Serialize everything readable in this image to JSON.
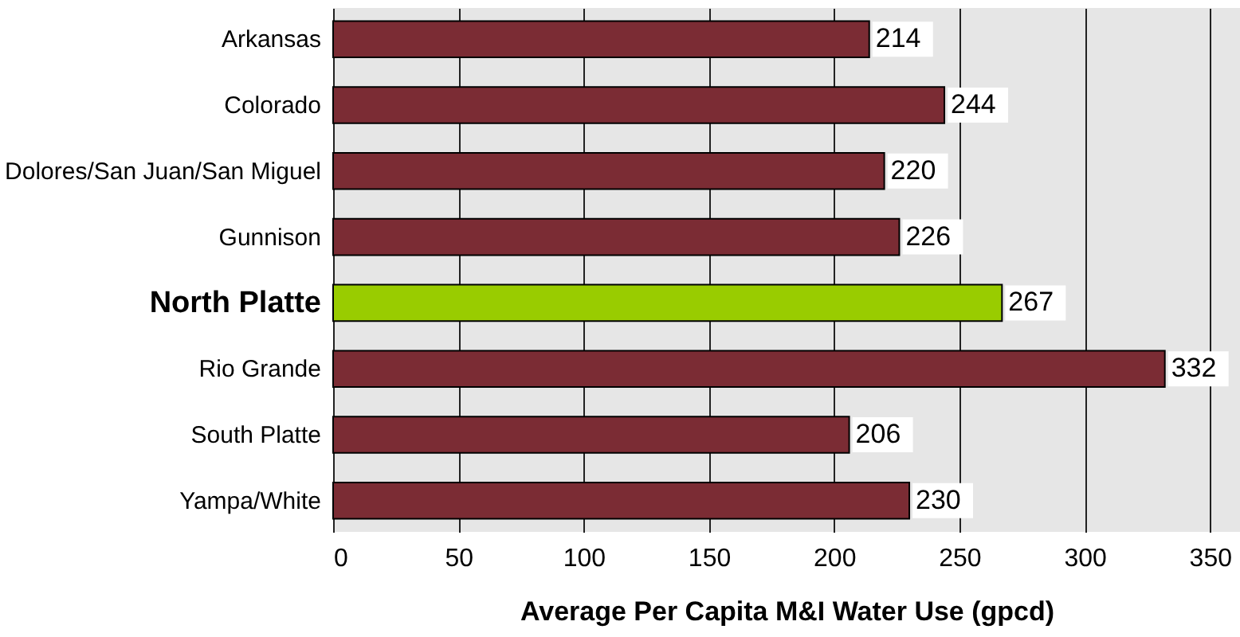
{
  "chart_data": {
    "type": "bar",
    "orientation": "horizontal",
    "xlabel": "Average Per Capita M&I Water Use (gpcd)",
    "categories": [
      "Arkansas",
      "Colorado",
      "Dolores/San Juan/San Miguel",
      "Gunnison",
      "North Platte",
      "Rio Grande",
      "South Platte",
      "Yampa/White"
    ],
    "values": [
      214,
      244,
      220,
      226,
      267,
      332,
      206,
      230
    ],
    "colors": [
      "#7b2c34",
      "#7b2c34",
      "#7b2c34",
      "#7b2c34",
      "#99cc00",
      "#7b2c34",
      "#7b2c34",
      "#7b2c34"
    ],
    "xlim": [
      0,
      362
    ],
    "xticks": [
      0,
      50,
      100,
      150,
      200,
      250,
      300,
      350
    ],
    "grid": "x",
    "data_labels": true
  }
}
